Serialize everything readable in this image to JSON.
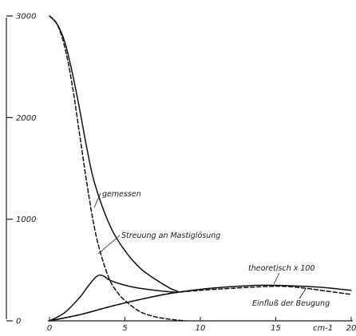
{
  "chart_data": {
    "type": "line",
    "title": "",
    "xlabel": "",
    "ylabel": "",
    "x_unit_label": "cm-1",
    "xlim": [
      0,
      20
    ],
    "ylim": [
      0,
      3000
    ],
    "x_ticks": [
      0,
      5,
      10,
      15,
      20
    ],
    "y_ticks": [
      0,
      1000,
      2000,
      3000
    ],
    "grid": false,
    "legend": "none",
    "series": [
      {
        "label_text": "gemessen",
        "style": "solid",
        "x": [
          0,
          0.5,
          1,
          1.5,
          2,
          2.5,
          3,
          4,
          5,
          6,
          7,
          8,
          8.5
        ],
        "y": [
          3000,
          2920,
          2750,
          2450,
          2080,
          1680,
          1350,
          940,
          690,
          520,
          410,
          320,
          290
        ]
      },
      {
        "label_text": "Streuung an Mastiglösung",
        "style": "dashed",
        "x": [
          0,
          0.5,
          1,
          1.5,
          2,
          2.5,
          3,
          3.5,
          4,
          4.5,
          5,
          6,
          7,
          8,
          9
        ],
        "y": [
          3000,
          2920,
          2700,
          2330,
          1830,
          1330,
          900,
          610,
          400,
          280,
          200,
          90,
          40,
          15,
          0
        ]
      },
      {
        "label_text": "",
        "style": "solid",
        "x": [
          0,
          1,
          2,
          2.5,
          3,
          3.3,
          3.6,
          4,
          5,
          6,
          7,
          8,
          8.5
        ],
        "y": [
          0,
          80,
          230,
          330,
          420,
          450,
          440,
          400,
          350,
          320,
          300,
          285,
          280
        ]
      },
      {
        "label_text": "theoretisch x 100",
        "style": "solid",
        "x": [
          0,
          2,
          4,
          6,
          8,
          10,
          12,
          14,
          16,
          18,
          20
        ],
        "y": [
          0,
          60,
          140,
          210,
          270,
          310,
          335,
          350,
          345,
          330,
          300
        ]
      },
      {
        "label_text": "Einfluß der Beugung",
        "style": "dashed",
        "x": [
          0,
          2,
          4,
          6,
          8,
          10,
          12,
          14,
          15.5,
          17,
          18,
          20
        ],
        "y": [
          0,
          60,
          140,
          210,
          270,
          300,
          320,
          335,
          340,
          320,
          300,
          260
        ]
      }
    ]
  }
}
